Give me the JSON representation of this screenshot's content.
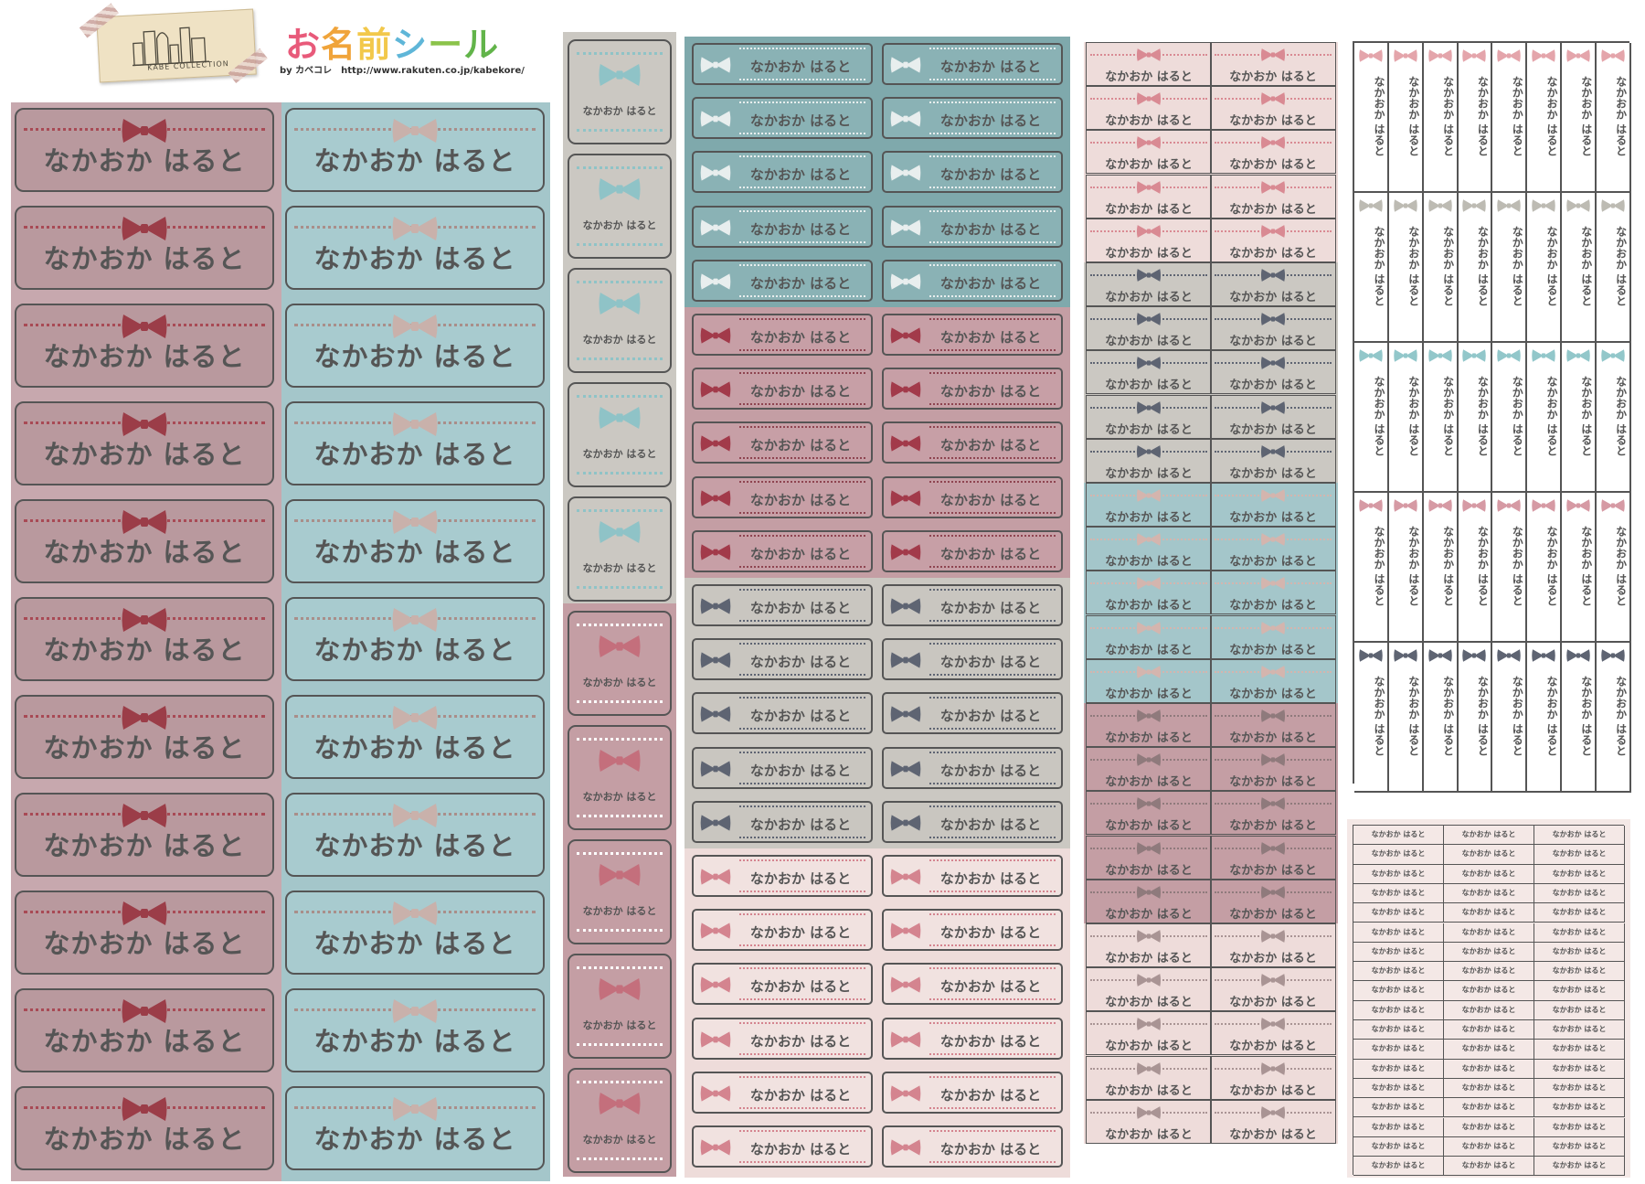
{
  "header": {
    "logo_text": "KABE COLLECTION",
    "title_chars": [
      "お",
      "名",
      "前",
      "シ",
      "ー",
      "ル"
    ],
    "subtitle": "by カベコレ　http://www.rakuten.co.jp/kabekore/"
  },
  "label_name": "なかおか はると",
  "colors": {
    "rose_bg": "#c7a8ae",
    "rose_tag": "#b9999e",
    "rose_bow": "#9b3d48",
    "teal_bg": "#a4c6ca",
    "teal_tag": "#a8cbcf",
    "teal_bow": "#c9b1ab",
    "blue_bg": "#7fa9ac",
    "blue_bow": "#e8eeee",
    "gray_bg": "#cbc8c2",
    "gray_bow": "#5e6472",
    "pink_bg": "#eedcda",
    "pink_bow": "#d4848f",
    "mauve_bg": "#c49ea4",
    "mauve_bow": "#a23a4a",
    "light_blue_bow": "#8fc3c7",
    "vertical_bows": [
      "#e4a5ab",
      "#bdbbb3",
      "#92c7ca",
      "#d69aa4",
      "#5e6472"
    ]
  }
}
